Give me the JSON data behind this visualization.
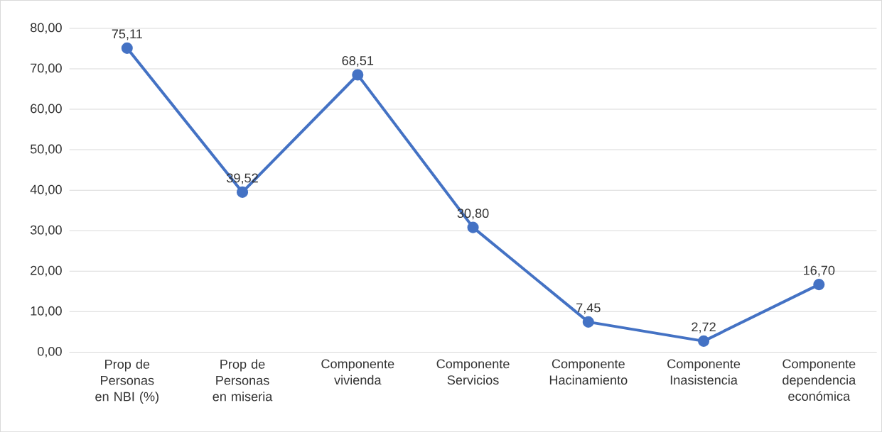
{
  "chart_data": {
    "type": "line",
    "categories": [
      "Prop de Personas en NBI (%)",
      "Prop de Personas en miseria",
      "Componente vivienda",
      "Componente Servicios",
      "Componente Hacinamiento",
      "Componente Inasistencia",
      "Componente dependencia económica"
    ],
    "values": [
      75.11,
      39.52,
      68.51,
      30.8,
      7.45,
      2.72,
      16.7
    ],
    "value_labels": [
      "75,11",
      "39,52",
      "68,51",
      "30,80",
      "7,45",
      "2,72",
      "16,70"
    ],
    "color": "#4472c4",
    "ylim": [
      0,
      80
    ],
    "yticks": [
      {
        "value": 0,
        "label": "0,00"
      },
      {
        "value": 10,
        "label": "10,00"
      },
      {
        "value": 20,
        "label": "20,00"
      },
      {
        "value": 30,
        "label": "30,00"
      },
      {
        "value": 40,
        "label": "40,00"
      },
      {
        "value": 50,
        "label": "50,00"
      },
      {
        "value": 60,
        "label": "60,00"
      },
      {
        "value": 70,
        "label": "70,00"
      },
      {
        "value": 80,
        "label": "80,00"
      }
    ],
    "grid": "y",
    "marker": "circle",
    "line_style": "solid"
  }
}
